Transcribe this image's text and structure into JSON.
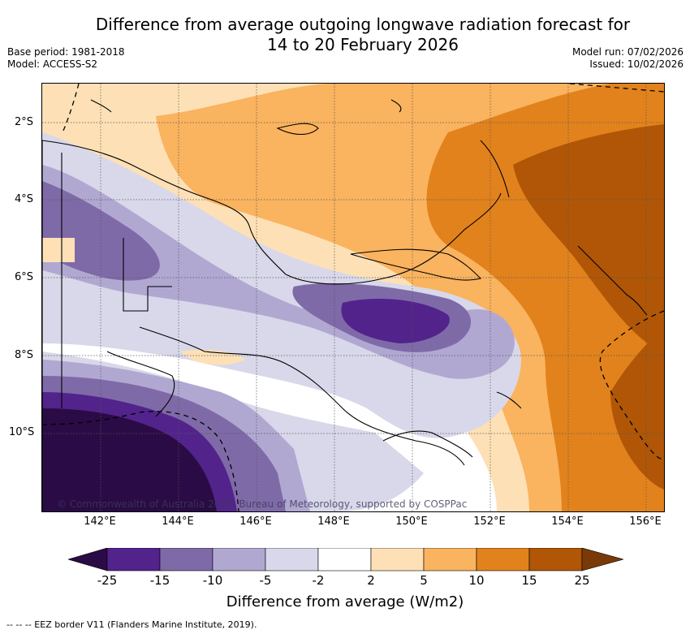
{
  "title_line1": "Difference from average outgoing longwave radiation forecast for",
  "title_line2": "14 to 20 February 2026",
  "base_period": "Base period: 1981-2018",
  "model": "Model: ACCESS-S2",
  "model_run": "Model run: 07/02/2026",
  "issued": "Issued: 10/02/2026",
  "lat_labels": [
    "2°S",
    "4°S",
    "6°S",
    "8°S",
    "10°S"
  ],
  "lon_labels": [
    "142°E",
    "144°E",
    "146°E",
    "148°E",
    "150°E",
    "152°E",
    "154°E",
    "156°E"
  ],
  "copyright": "© Commonwealth of Australia 2026, Bureau of Meteorology, supported by COSPPac",
  "legend": {
    "ticks": [
      "-25",
      "-15",
      "-10",
      "-5",
      "-2",
      "2",
      "5",
      "10",
      "15",
      "25"
    ],
    "colors": [
      "#2b0b45",
      "#53238c",
      "#7f6aa8",
      "#b1a8d2",
      "#d8d8ea",
      "#ffffff",
      "#fde0b6",
      "#fab35e",
      "#e2821c",
      "#b05606",
      "#7a3a08"
    ],
    "title": "Difference from average (W/m2)"
  },
  "footer": "-- -- -- EEZ border V11 (Flanders Marine Institute, 2019)."
}
